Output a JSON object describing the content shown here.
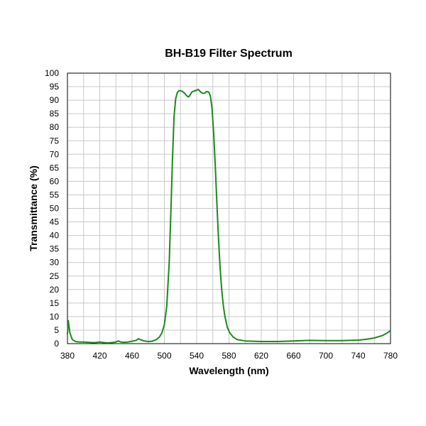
{
  "chart_data": {
    "type": "line",
    "title": "BH-B19 Filter Spectrum",
    "xlabel": "Wavelength (nm)",
    "ylabel": "Transmittance (%)",
    "xlim": [
      380,
      780
    ],
    "ylim": [
      0,
      100
    ],
    "x_ticks": [
      380,
      420,
      460,
      500,
      540,
      580,
      620,
      660,
      700,
      740,
      780
    ],
    "y_ticks": [
      0,
      5,
      10,
      15,
      20,
      25,
      30,
      35,
      40,
      45,
      50,
      55,
      60,
      65,
      70,
      75,
      80,
      85,
      90,
      95,
      100
    ],
    "grid": true,
    "legend": "none",
    "line_color": "#1a8a1a",
    "series": [
      {
        "x": [
          380,
          381,
          383,
          386,
          390,
          395,
          400,
          405,
          410,
          415,
          420,
          425,
          430,
          435,
          440,
          443,
          446,
          450,
          455,
          460,
          465,
          468,
          471,
          475,
          480,
          485,
          490,
          494,
          497,
          500,
          503,
          506,
          508,
          510,
          512,
          514,
          516,
          518,
          520,
          522,
          525,
          528,
          530,
          532,
          534,
          536,
          539,
          542,
          545,
          548,
          550,
          552,
          555,
          557,
          559,
          561,
          563,
          565,
          567,
          569,
          571,
          573,
          575,
          578,
          581,
          585,
          590,
          600,
          620,
          640,
          660,
          680,
          700,
          720,
          740,
          750,
          760,
          770,
          775,
          780
        ],
        "y": [
          3.5,
          8.5,
          4,
          1.5,
          0.8,
          0.6,
          0.6,
          0.5,
          0.4,
          0.4,
          0.6,
          0.4,
          0.3,
          0.4,
          0.6,
          1,
          0.6,
          0.5,
          0.6,
          0.9,
          1.2,
          1.8,
          1.4,
          1,
          0.8,
          0.9,
          1.5,
          2.5,
          4,
          7,
          14,
          30,
          48,
          68,
          84,
          90.5,
          92.8,
          93.5,
          93.5,
          93.3,
          92.6,
          91.5,
          91.2,
          92,
          93,
          93.3,
          93.6,
          94,
          93,
          92.5,
          92.6,
          93.2,
          93,
          91.5,
          87,
          78,
          66,
          52,
          39,
          28,
          20,
          14,
          10,
          6,
          4,
          2.5,
          1.5,
          1,
          0.8,
          0.8,
          1,
          1.2,
          1.1,
          1.1,
          1.3,
          1.6,
          2.1,
          3,
          3.8,
          4.8
        ]
      }
    ]
  }
}
